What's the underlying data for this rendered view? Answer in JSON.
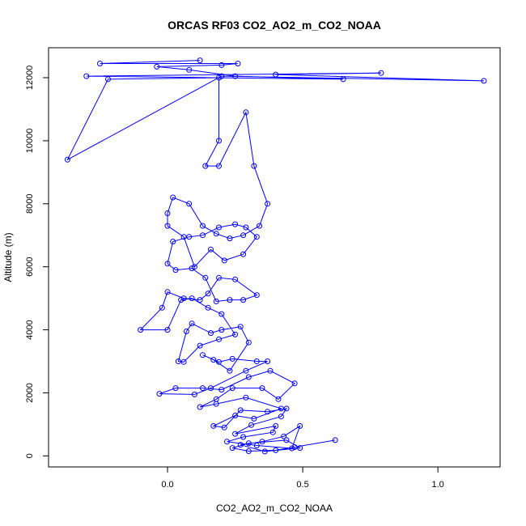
{
  "chart_data": {
    "type": "line",
    "title": "ORCAS RF03 CO2_AO2_m_CO2_NOAA",
    "xlabel": "CO2_AO2_m_CO2_NOAA",
    "ylabel": "Altitude (m)",
    "xlim": [
      -0.44,
      1.23
    ],
    "ylim": [
      -350,
      12950
    ],
    "x_ticks": [
      0.0,
      0.5,
      1.0
    ],
    "x_tick_labels": [
      "0.0",
      "0.5",
      "1.0"
    ],
    "y_ticks": [
      0,
      2000,
      4000,
      6000,
      8000,
      10000,
      12000
    ],
    "y_tick_labels": [
      "0",
      "2000",
      "4000",
      "6000",
      "8000",
      "10000",
      "12000"
    ],
    "grid": false,
    "series_color": "#0000ff",
    "series": [
      {
        "marker": "open-circle",
        "points": [
          [
            0.62,
            500
          ],
          [
            0.47,
            280
          ],
          [
            0.4,
            180
          ],
          [
            0.3,
            150
          ],
          [
            0.24,
            250
          ],
          [
            0.3,
            400
          ],
          [
            0.44,
            500
          ],
          [
            0.49,
            250
          ],
          [
            0.36,
            140
          ],
          [
            0.27,
            350
          ],
          [
            0.35,
            450
          ],
          [
            0.43,
            620
          ],
          [
            0.49,
            950
          ],
          [
            0.46,
            240
          ],
          [
            0.33,
            330
          ],
          [
            0.22,
            450
          ],
          [
            0.28,
            600
          ],
          [
            0.39,
            750
          ],
          [
            0.4,
            950
          ],
          [
            0.25,
            700
          ],
          [
            0.31,
            980
          ],
          [
            0.42,
            1250
          ],
          [
            0.44,
            1500
          ],
          [
            0.37,
            1400
          ],
          [
            0.27,
            1450
          ],
          [
            0.21,
            900
          ],
          [
            0.17,
            950
          ],
          [
            0.25,
            1280
          ],
          [
            0.32,
            1180
          ],
          [
            0.42,
            1500
          ],
          [
            0.29,
            1850
          ],
          [
            0.18,
            1650
          ],
          [
            0.12,
            1550
          ],
          [
            0.18,
            1800
          ],
          [
            0.24,
            2150
          ],
          [
            0.35,
            2150
          ],
          [
            0.41,
            1800
          ],
          [
            0.47,
            2300
          ],
          [
            0.38,
            2700
          ],
          [
            0.3,
            2500
          ],
          [
            0.2,
            2100
          ],
          [
            0.13,
            2150
          ],
          [
            0.03,
            2150
          ],
          [
            -0.03,
            1970
          ],
          [
            0.1,
            1950
          ],
          [
            0.16,
            2150
          ],
          [
            0.29,
            2700
          ],
          [
            0.37,
            3000
          ],
          [
            0.33,
            3000
          ],
          [
            0.24,
            3080
          ],
          [
            0.19,
            2980
          ],
          [
            0.13,
            3200
          ],
          [
            0.17,
            3050
          ],
          [
            0.23,
            2700
          ],
          [
            0.3,
            3600
          ],
          [
            0.27,
            4100
          ],
          [
            0.2,
            4000
          ],
          [
            0.16,
            3900
          ],
          [
            0.09,
            4200
          ],
          [
            0.07,
            3950
          ],
          [
            0.04,
            3000
          ],
          [
            0.06,
            2980
          ],
          [
            0.12,
            3500
          ],
          [
            0.19,
            3700
          ],
          [
            0.25,
            3850
          ],
          [
            0.2,
            4500
          ],
          [
            0.15,
            4700
          ],
          [
            0.09,
            5000
          ],
          [
            0.05,
            4950
          ],
          [
            0.0,
            4000
          ],
          [
            -0.1,
            4000
          ],
          [
            -0.02,
            4700
          ],
          [
            0.0,
            5200
          ],
          [
            0.06,
            5000
          ],
          [
            0.12,
            4950
          ],
          [
            0.15,
            5150
          ],
          [
            0.19,
            5650
          ],
          [
            0.25,
            5600
          ],
          [
            0.33,
            5100
          ],
          [
            0.28,
            4950
          ],
          [
            0.23,
            4950
          ],
          [
            0.18,
            4900
          ],
          [
            0.14,
            5650
          ],
          [
            0.09,
            5950
          ],
          [
            0.03,
            5900
          ],
          [
            0.0,
            6100
          ],
          [
            0.02,
            6800
          ],
          [
            0.08,
            6950
          ],
          [
            0.13,
            7000
          ],
          [
            0.19,
            7250
          ],
          [
            0.25,
            7350
          ],
          [
            0.29,
            7250
          ],
          [
            0.33,
            6950
          ],
          [
            0.28,
            6400
          ],
          [
            0.21,
            6200
          ],
          [
            0.16,
            6550
          ],
          [
            0.1,
            6000
          ],
          [
            0.06,
            6950
          ],
          [
            0.0,
            7300
          ],
          [
            0.0,
            7700
          ],
          [
            0.02,
            8200
          ],
          [
            0.08,
            8000
          ],
          [
            0.13,
            7300
          ],
          [
            0.18,
            7050
          ],
          [
            0.23,
            6900
          ],
          [
            0.28,
            7000
          ],
          [
            0.34,
            7300
          ],
          [
            0.37,
            8000
          ],
          [
            0.32,
            9200
          ],
          [
            0.29,
            10900
          ],
          [
            0.19,
            9200
          ],
          [
            0.14,
            9200
          ],
          [
            0.19,
            10000
          ],
          [
            0.19,
            12000
          ],
          [
            -0.22,
            11950
          ],
          [
            -0.37,
            9400
          ],
          [
            0.2,
            12050
          ],
          [
            1.17,
            11900
          ],
          [
            0.4,
            12100
          ],
          [
            0.79,
            12150
          ],
          [
            -0.3,
            12050
          ],
          [
            0.65,
            11950
          ],
          [
            0.25,
            12050
          ],
          [
            0.08,
            12250
          ],
          [
            -0.04,
            12350
          ],
          [
            0.2,
            12400
          ],
          [
            0.26,
            12450
          ],
          [
            -0.25,
            12450
          ],
          [
            0.12,
            12550
          ]
        ]
      }
    ]
  }
}
